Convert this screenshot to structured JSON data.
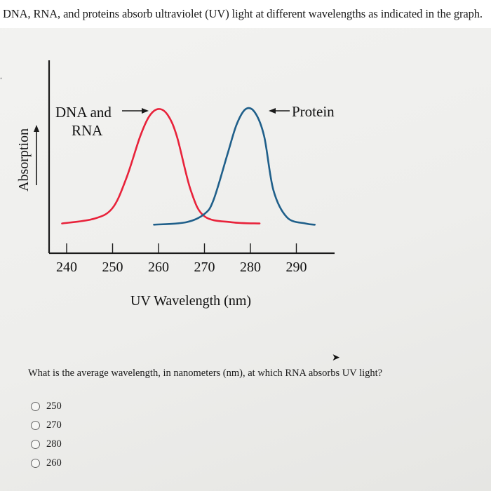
{
  "question": {
    "text": "DNA, RNA, and proteins absorb ultraviolet (UV) light at different wavelengths as indicated in the graph."
  },
  "colors": {
    "dna_rna_curve": "#e8223a",
    "protein_curve": "#1f5f8a",
    "axis": "#1a1a1a"
  },
  "chart_data": {
    "type": "line",
    "xlabel": "UV Wavelength (nm)",
    "ylabel": "Absorption",
    "xticks": [
      240,
      250,
      260,
      270,
      280,
      290
    ],
    "xlim": [
      236,
      295
    ],
    "ylim": [
      0,
      1
    ],
    "grid": false,
    "series": [
      {
        "name": "DNA and RNA",
        "x": [
          239,
          246,
          250,
          253,
          256,
          258,
          260,
          262,
          264,
          267,
          270,
          276,
          282
        ],
        "y": [
          0.02,
          0.06,
          0.15,
          0.4,
          0.75,
          0.92,
          0.98,
          0.93,
          0.75,
          0.3,
          0.08,
          0.03,
          0.02
        ]
      },
      {
        "name": "Protein",
        "x": [
          259,
          266,
          270,
          272,
          275,
          277,
          279,
          281,
          283,
          285,
          288,
          292,
          294
        ],
        "y": [
          0.01,
          0.03,
          0.1,
          0.22,
          0.6,
          0.85,
          0.98,
          0.95,
          0.75,
          0.3,
          0.07,
          0.02,
          0.01
        ]
      }
    ],
    "annotations": [
      {
        "text_lines": [
          "DNA and",
          "RNA"
        ],
        "arrow_target": "DNA and RNA peak"
      },
      {
        "text_lines": [
          "Protein"
        ],
        "arrow_target": "Protein peak"
      }
    ]
  },
  "prompt": {
    "text": "What is the average wavelength, in nanometers (nm), at which RNA absorbs UV light?"
  },
  "answers": {
    "options": [
      "250",
      "270",
      "280",
      "260"
    ]
  }
}
